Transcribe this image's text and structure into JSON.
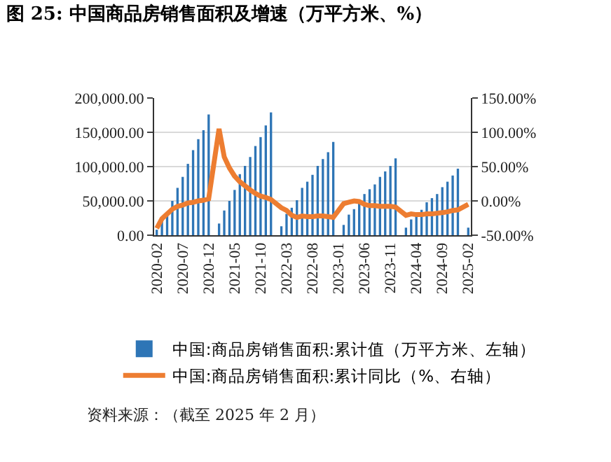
{
  "chart_data": {
    "type": "bar",
    "title": "图 25: 中国商品房销售面积及增速（万平方米、%）",
    "categories": [
      "2020-02",
      null,
      null,
      null,
      null,
      "2020-07",
      null,
      null,
      null,
      null,
      "2020-12",
      null,
      null,
      null,
      null,
      "2021-05",
      null,
      null,
      null,
      null,
      "2021-10",
      null,
      null,
      null,
      null,
      "2022-03",
      null,
      null,
      null,
      null,
      "2022-08",
      null,
      null,
      null,
      null,
      "2023-01",
      null,
      null,
      null,
      null,
      "2023-06",
      null,
      null,
      null,
      null,
      "2023-11",
      null,
      null,
      null,
      null,
      "2024-04",
      null,
      null,
      null,
      null,
      "2024-09",
      null,
      null,
      null,
      null,
      "2025-02"
    ],
    "series": [
      {
        "name": "中国:商品房销售面积:累计值（万平方米、左轴）",
        "color": "#2e75b6",
        "values": [
          8000,
          22000,
          34000,
          50000,
          69000,
          85000,
          104000,
          124000,
          140000,
          153000,
          176000,
          null,
          17000,
          36000,
          50000,
          66000,
          89000,
          101000,
          114000,
          130000,
          143000,
          160000,
          179000,
          null,
          13000,
          31000,
          40000,
          51000,
          69000,
          78000,
          88000,
          101000,
          111000,
          121000,
          136000,
          null,
          15000,
          30000,
          38000,
          46000,
          60000,
          67000,
          74000,
          85000,
          93000,
          101000,
          112000,
          null,
          11000,
          23000,
          29000,
          37000,
          48000,
          54000,
          60000,
          70000,
          78000,
          87000,
          97000,
          null,
          11000
        ]
      },
      {
        "name": "中国:商品房销售面积:累计同比（%、右轴）",
        "type": "line",
        "axis": "y2",
        "color": "#ed7d31",
        "values": [
          -40,
          -26,
          -19,
          -12,
          -8,
          -6,
          -3,
          -2,
          0,
          1,
          3,
          null,
          105,
          64,
          48,
          36,
          28,
          22,
          16,
          11,
          7,
          5,
          2,
          null,
          -10,
          -14,
          -21,
          -24,
          -22,
          -23,
          -23,
          -22,
          -22,
          -23,
          -24,
          null,
          -4,
          -2,
          0,
          -1,
          -5,
          -7,
          -7,
          -8,
          -8,
          -8,
          -9,
          null,
          -21,
          -19,
          -20,
          -20,
          -19,
          -19,
          -18,
          -17,
          -16,
          -14,
          -13,
          null,
          -5
        ]
      }
    ],
    "ylim": [
      0,
      200000
    ],
    "yticks": [
      {
        "value": 0,
        "label": "0.00"
      },
      {
        "value": 50000,
        "label": "50,000.00"
      },
      {
        "value": 100000,
        "label": "100,000.00"
      },
      {
        "value": 150000,
        "label": "150,000.00"
      },
      {
        "value": 200000,
        "label": "200,000.00"
      }
    ],
    "y2lim": [
      -50,
      150
    ],
    "y2ticks": [
      {
        "value": -50,
        "label": "-50.00%"
      },
      {
        "value": 0,
        "label": "0.00%"
      },
      {
        "value": 50,
        "label": "50.00%"
      },
      {
        "value": 100,
        "label": "100.00%"
      },
      {
        "value": 150,
        "label": "150.00%"
      }
    ],
    "grid": "y",
    "legend": "bottom",
    "annotations": [
      "资料来源：（截至 2025 年 2 月）"
    ]
  }
}
